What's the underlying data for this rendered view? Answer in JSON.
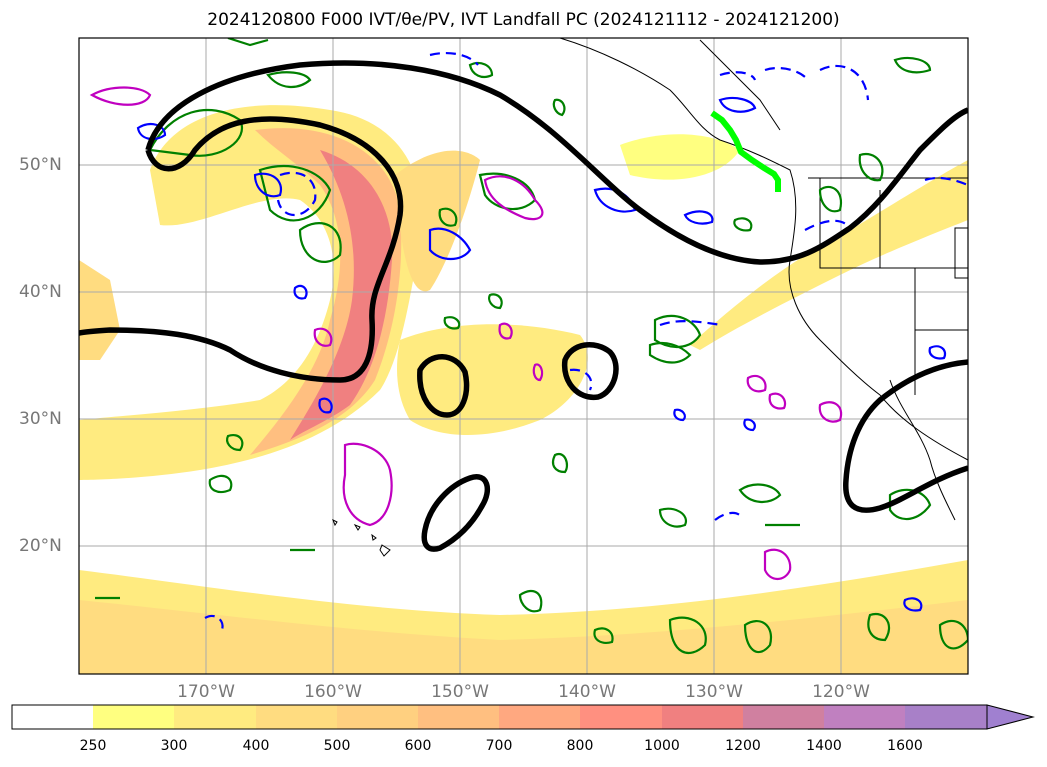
{
  "title": "2024120800 F000 IVT/θe/PV, IVT Landfall PC (2024121112 - 2024121200)",
  "map": {
    "lat_labels": [
      "50°N",
      "40°N",
      "30°N",
      "20°N"
    ],
    "lon_labels": [
      "170°W",
      "160°W",
      "150°W",
      "140°W",
      "130°W",
      "120°W"
    ],
    "extent": {
      "lon_min": -180,
      "lon_max": -110,
      "lat_min": 10,
      "lat_max": 60
    }
  },
  "colorbar": {
    "levels": [
      "250",
      "300",
      "400",
      "500",
      "600",
      "700",
      "800",
      "1000",
      "1200",
      "1400",
      "1600"
    ],
    "colors": [
      "#ffffff",
      "#ffff80",
      "#ffeb80",
      "#ffdc80",
      "#ffd080",
      "#ffbf80",
      "#ffa880",
      "#ff9080",
      "#f08080",
      "#d080a0",
      "#c080c0",
      "#a880c8",
      "#a080d0"
    ],
    "extend": "max"
  },
  "colors": {
    "ivt_contour": "#000000",
    "pv_pos": "#008000",
    "pv_neg": "#0000ff",
    "theta_e": "#c000c0",
    "landfall": "#00ff00"
  }
}
